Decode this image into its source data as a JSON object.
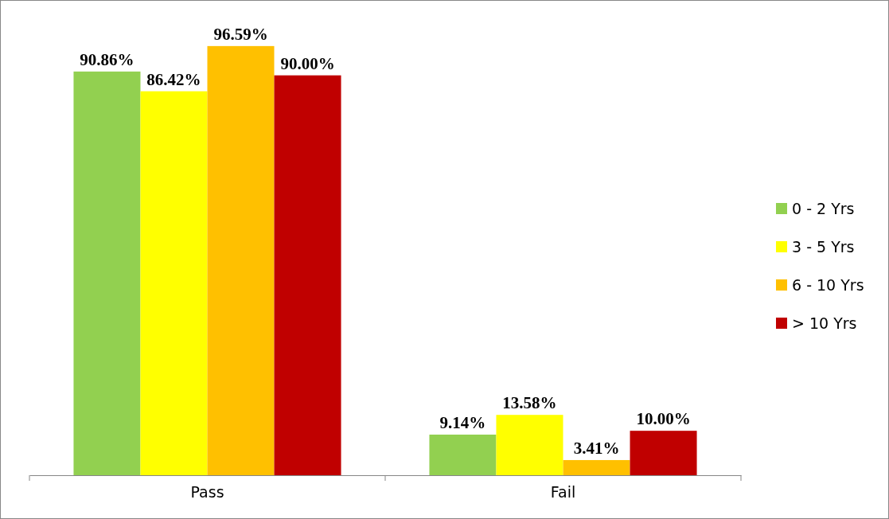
{
  "chart_data": {
    "type": "bar",
    "categories": [
      "Pass",
      "Fail"
    ],
    "series": [
      {
        "name": "0 - 2 Yrs",
        "color": "#92d050",
        "values": [
          90.86,
          9.14
        ],
        "value_labels": [
          "90.86%",
          "9.14%"
        ]
      },
      {
        "name": "3 - 5 Yrs",
        "color": "#ffff00",
        "values": [
          86.42,
          13.58
        ],
        "value_labels": [
          "86.42%",
          "13.58%"
        ]
      },
      {
        "name": "6 - 10 Yrs",
        "color": "#ffc000",
        "values": [
          96.59,
          3.41
        ],
        "value_labels": [
          "96.59%",
          "3.41%"
        ]
      },
      {
        "name": "> 10 Yrs",
        "color": "#c00000",
        "values": [
          90.0,
          10.0
        ],
        "value_labels": [
          "90.00%",
          "10.00%"
        ]
      }
    ],
    "tick_labels": "x",
    "legend": "right"
  }
}
